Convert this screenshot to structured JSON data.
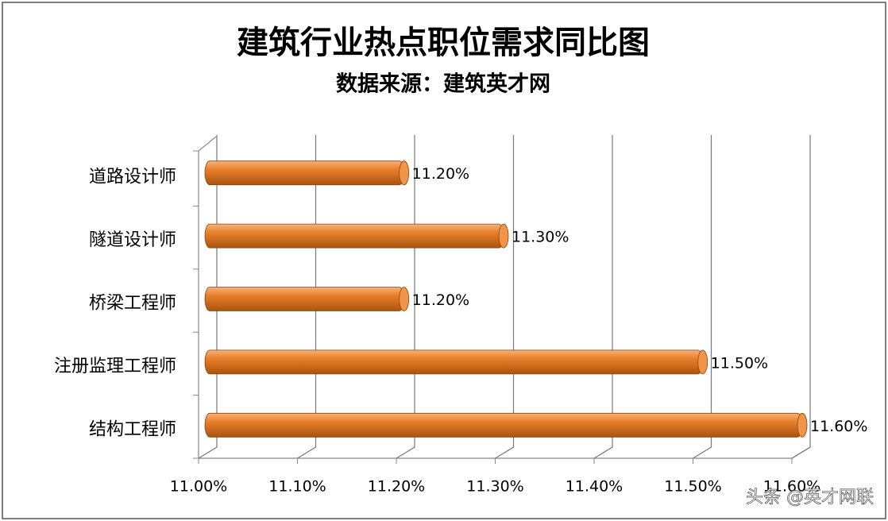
{
  "chart_data": {
    "type": "bar",
    "orientation": "horizontal",
    "title": "建筑行业热点职位需求同比图",
    "subtitle": "数据来源：建筑英才网",
    "categories": [
      "道路设计师",
      "隧道设计师",
      "桥梁工程师",
      "注册监理工程师",
      "结构工程师"
    ],
    "values": [
      11.2,
      11.3,
      11.2,
      11.5,
      11.6
    ],
    "value_labels": [
      "11.20%",
      "11.30%",
      "11.20%",
      "11.50%",
      "11.60%"
    ],
    "color": "#e8802a",
    "xlim": [
      11.0,
      11.6
    ],
    "xticks": [
      {
        "value": 11.0,
        "label": "11.00%"
      },
      {
        "value": 11.1,
        "label": "11.10%"
      },
      {
        "value": 11.2,
        "label": "11.20%"
      },
      {
        "value": 11.3,
        "label": "11.30%"
      },
      {
        "value": 11.4,
        "label": "11.40%"
      },
      {
        "value": 11.5,
        "label": "11.50%"
      },
      {
        "value": 11.6,
        "label": "11.60%"
      }
    ],
    "grid": true,
    "watermark": "头条 @英才网联"
  }
}
